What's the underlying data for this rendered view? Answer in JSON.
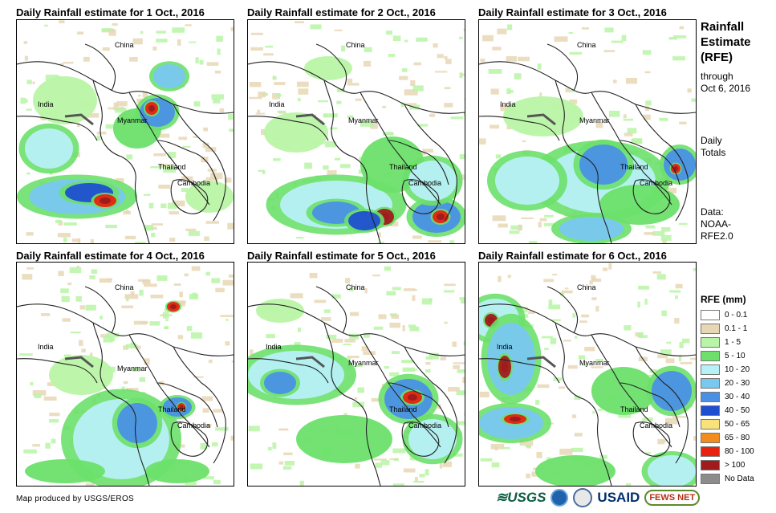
{
  "panels": [
    {
      "title": "Daily Rainfall estimate for 1 Oct., 2016"
    },
    {
      "title": "Daily Rainfall estimate for 2 Oct., 2016"
    },
    {
      "title": "Daily Rainfall estimate for 3 Oct., 2016"
    },
    {
      "title": "Daily Rainfall estimate for 4 Oct., 2016"
    },
    {
      "title": "Daily Rainfall estimate for 5 Oct., 2016"
    },
    {
      "title": "Daily Rainfall estimate for 6 Oct., 2016"
    }
  ],
  "map_labels": {
    "china": "China",
    "india": "India",
    "myanmar": "Myanmar",
    "thailand": "Thailand",
    "cambodia": "Cambodia"
  },
  "side": {
    "title_line1": "Rainfall",
    "title_line2": "Estimate",
    "title_line3": "(RFE)",
    "through_line1": "through",
    "through_line2": "Oct 6, 2016",
    "totals_line1": "Daily",
    "totals_line2": "Totals",
    "data_line1": "Data:",
    "data_line2": "NOAA-",
    "data_line3": "RFE2.0"
  },
  "legend": {
    "title": "RFE (mm)",
    "items": [
      {
        "label": "0 - 0.1",
        "color": "#ffffff"
      },
      {
        "label": "0.1 - 1",
        "color": "#e8d7b5"
      },
      {
        "label": "1 - 5",
        "color": "#b9f5a6"
      },
      {
        "label": "5 - 10",
        "color": "#6ce06a"
      },
      {
        "label": "10 - 20",
        "color": "#b8f0f7"
      },
      {
        "label": "20 - 30",
        "color": "#79c8f0"
      },
      {
        "label": "30 - 40",
        "color": "#4a91e6"
      },
      {
        "label": "40 - 50",
        "color": "#1f4fd0"
      },
      {
        "label": "50 - 65",
        "color": "#f9e27a"
      },
      {
        "label": "65 - 80",
        "color": "#f28c1c"
      },
      {
        "label": "80 - 100",
        "color": "#e8220f"
      },
      {
        "label": "> 100",
        "color": "#a01c1c"
      },
      {
        "label": "No Data",
        "color": "#8c8c8c"
      }
    ]
  },
  "credit": "Map produced by USGS/EROS",
  "logos": {
    "usgs": "≋USGS",
    "usaid": "USAID",
    "fews": "FEWS NET"
  }
}
